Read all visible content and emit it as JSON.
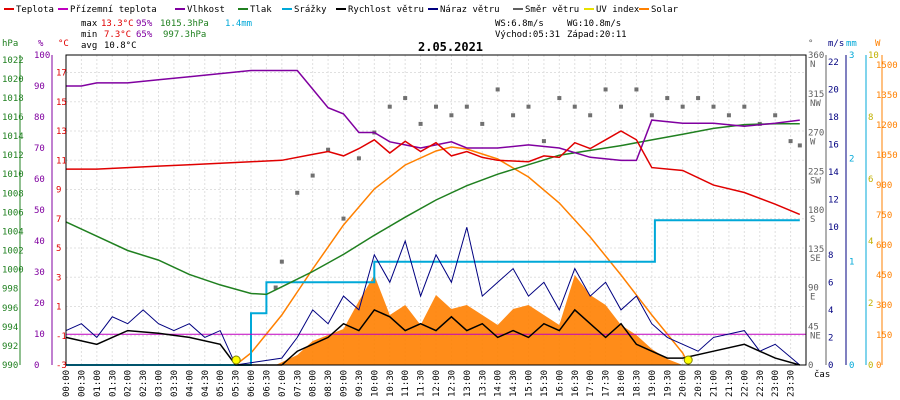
{
  "chart_data": {
    "type": "line",
    "title": "2.05.2021",
    "legend": [
      {
        "label": "Teplota",
        "color": "#e00000"
      },
      {
        "label": "Přízemní teplota",
        "color": "#c000c0"
      },
      {
        "label": "Vlhkost",
        "color": "#8000a0"
      },
      {
        "label": "Tlak",
        "color": "#208020"
      },
      {
        "label": "Srážky",
        "color": "#00a8d8"
      },
      {
        "label": "Rychlost větru",
        "color": "#000000"
      },
      {
        "label": "Náraz větru",
        "color": "#000080"
      },
      {
        "label": "Směr větru",
        "color": "#606060"
      },
      {
        "label": "UV index",
        "color": "#e8e000"
      },
      {
        "label": "Solar",
        "color": "#ff8000"
      }
    ],
    "stats": {
      "max_label": "max",
      "max_temp": "13.3°C",
      "max_hum": "95%",
      "max_press": "1015.3hPa",
      "rain_total": "1.4mm",
      "min_label": "min",
      "min_temp": "7.3°C",
      "min_hum": "65%",
      "min_press": "997.3hPa",
      "avg_label": "avg",
      "avg_temp": "10.8°C",
      "ws": "WS:6.8m/s",
      "wg": "WG:10.8m/s",
      "sunrise": "Východ:05:31",
      "sunset": "Západ:20:11"
    },
    "axis_units": {
      "hpa": "hPa",
      "pct": "%",
      "temp": "°C",
      "dir": "°",
      "ms": "m/s",
      "mm": "mm",
      "w": "W",
      "x": "čas"
    },
    "x_ticks": [
      "00:00",
      "00:30",
      "01:00",
      "01:30",
      "02:00",
      "02:30",
      "03:00",
      "03:30",
      "04:00",
      "04:30",
      "05:00",
      "05:30",
      "06:00",
      "06:30",
      "07:00",
      "07:30",
      "08:00",
      "08:30",
      "09:00",
      "09:30",
      "10:00",
      "10:30",
      "11:00",
      "11:30",
      "12:00",
      "12:30",
      "13:00",
      "13:30",
      "14:00",
      "14:30",
      "15:00",
      "15:30",
      "16:00",
      "16:30",
      "17:00",
      "17:30",
      "18:00",
      "18:30",
      "19:00",
      "19:30",
      "20:00",
      "20:30",
      "21:00",
      "21:30",
      "22:00",
      "22:30",
      "23:00",
      "23:30"
    ],
    "y_ticks_hpa": [
      "1022",
      "1020",
      "1018",
      "1016",
      "1014",
      "1012",
      "1010",
      "1008",
      "1006",
      "1004",
      "1002",
      "1000",
      "998",
      "996",
      "994",
      "992",
      "990"
    ],
    "y_ticks_pct": [
      "100",
      "90",
      "80",
      "70",
      "60",
      "50",
      "40",
      "30",
      "20",
      "10",
      "0"
    ],
    "y_ticks_temp": [
      "17",
      "15",
      "13",
      "11",
      "9",
      "7",
      "5",
      "3",
      "1",
      "-1",
      "-3"
    ],
    "y_ticks_dir": [
      "360",
      "315",
      "270",
      "225",
      "180",
      "135",
      "90",
      "45",
      "0"
    ],
    "y_ticks_dir_labels": [
      "N",
      "NW",
      "W",
      "SW",
      "S",
      "SE",
      "E",
      "NE",
      ""
    ],
    "y_ticks_ms": [
      "22",
      "20",
      "18",
      "16",
      "14",
      "12",
      "10",
      "8",
      "6",
      "4",
      "2",
      "0"
    ],
    "y_ticks_mm": [
      "3",
      "2",
      "1",
      "0"
    ],
    "y_ticks_uv": [
      "10",
      "8",
      "6",
      "4",
      "2",
      "0"
    ],
    "y_ticks_w": [
      "1500",
      "1350",
      "1200",
      "1050",
      "900",
      "750",
      "600",
      "450",
      "300",
      "150",
      "0"
    ],
    "series": {
      "temperature_c": [
        [
          0,
          10.4
        ],
        [
          1,
          10.4
        ],
        [
          2,
          10.5
        ],
        [
          3,
          10.6
        ],
        [
          4,
          10.7
        ],
        [
          5,
          10.8
        ],
        [
          6,
          10.9
        ],
        [
          7,
          11.0
        ],
        [
          8,
          11.4
        ],
        [
          8.5,
          11.6
        ],
        [
          9,
          11.3
        ],
        [
          9.5,
          11.8
        ],
        [
          10,
          12.4
        ],
        [
          10.5,
          11.5
        ],
        [
          11,
          12.3
        ],
        [
          11.5,
          11.6
        ],
        [
          12,
          12.2
        ],
        [
          12.5,
          11.3
        ],
        [
          13,
          11.6
        ],
        [
          13.5,
          11.2
        ],
        [
          14,
          11.0
        ],
        [
          15,
          10.9
        ],
        [
          15.5,
          11.3
        ],
        [
          16,
          11.2
        ],
        [
          16.5,
          12.2
        ],
        [
          17,
          11.8
        ],
        [
          17.5,
          12.4
        ],
        [
          18,
          13.0
        ],
        [
          18.5,
          12.4
        ],
        [
          19,
          10.5
        ],
        [
          20,
          10.3
        ],
        [
          21,
          9.3
        ],
        [
          22,
          8.8
        ],
        [
          23,
          8.0
        ],
        [
          23.8,
          7.3
        ]
      ],
      "humidity_pct": [
        [
          0,
          90
        ],
        [
          0.5,
          90
        ],
        [
          1,
          91
        ],
        [
          2,
          91
        ],
        [
          3,
          92
        ],
        [
          4,
          93
        ],
        [
          5,
          94
        ],
        [
          6,
          95
        ],
        [
          7,
          95
        ],
        [
          7.5,
          95
        ],
        [
          8,
          89
        ],
        [
          8.5,
          83
        ],
        [
          9,
          81
        ],
        [
          9.5,
          75
        ],
        [
          10,
          75
        ],
        [
          10.5,
          72
        ],
        [
          11,
          71
        ],
        [
          11.5,
          70
        ],
        [
          12,
          71
        ],
        [
          12.5,
          72
        ],
        [
          13,
          70
        ],
        [
          14,
          70
        ],
        [
          15,
          71
        ],
        [
          16,
          70
        ],
        [
          17,
          67
        ],
        [
          18,
          66
        ],
        [
          18.5,
          66
        ],
        [
          19,
          79
        ],
        [
          20,
          78
        ],
        [
          21,
          78
        ],
        [
          22,
          77
        ],
        [
          23,
          78
        ],
        [
          23.8,
          79
        ]
      ],
      "pressure_hpa": [
        [
          0,
          1005
        ],
        [
          1,
          1003.5
        ],
        [
          2,
          1002
        ],
        [
          3,
          1001
        ],
        [
          4,
          999.5
        ],
        [
          5,
          998.4
        ],
        [
          6,
          997.5
        ],
        [
          6.5,
          997.4
        ],
        [
          7,
          998.2
        ],
        [
          8,
          999.8
        ],
        [
          9,
          1001.6
        ],
        [
          10,
          1003.6
        ],
        [
          11,
          1005.5
        ],
        [
          12,
          1007.3
        ],
        [
          13,
          1008.8
        ],
        [
          14,
          1010
        ],
        [
          15,
          1011
        ],
        [
          16,
          1012
        ],
        [
          17,
          1012.5
        ],
        [
          18,
          1013
        ],
        [
          19,
          1013.6
        ],
        [
          20,
          1014.2
        ],
        [
          21,
          1014.8
        ],
        [
          22,
          1015.2
        ],
        [
          23,
          1015.3
        ],
        [
          23.8,
          1015.3
        ]
      ],
      "rain_mm": [
        [
          0,
          0
        ],
        [
          5.8,
          0
        ],
        [
          6.0,
          0.5
        ],
        [
          6.5,
          0.8
        ],
        [
          8.5,
          0.8
        ],
        [
          10,
          1.0
        ],
        [
          19,
          1.0
        ],
        [
          19.1,
          1.4
        ],
        [
          23.8,
          1.4
        ]
      ],
      "wind_speed_ms": [
        [
          0,
          2.0
        ],
        [
          1,
          1.5
        ],
        [
          2,
          2.5
        ],
        [
          3,
          2.3
        ],
        [
          4,
          2.0
        ],
        [
          5,
          1.5
        ],
        [
          5.5,
          0
        ],
        [
          7,
          0
        ],
        [
          7.5,
          1
        ],
        [
          8,
          1.5
        ],
        [
          8.5,
          2
        ],
        [
          9,
          3
        ],
        [
          9.5,
          2.5
        ],
        [
          10,
          4
        ],
        [
          10.5,
          3.5
        ],
        [
          11,
          2.5
        ],
        [
          11.5,
          3
        ],
        [
          12,
          2.5
        ],
        [
          12.5,
          3.5
        ],
        [
          13,
          2.5
        ],
        [
          13.5,
          3
        ],
        [
          14,
          2
        ],
        [
          14.5,
          2.5
        ],
        [
          15,
          2
        ],
        [
          15.5,
          3
        ],
        [
          16,
          2.5
        ],
        [
          16.5,
          4
        ],
        [
          17,
          3
        ],
        [
          17.5,
          2
        ],
        [
          18,
          3
        ],
        [
          18.5,
          1.5
        ],
        [
          19,
          1
        ],
        [
          19.5,
          0.5
        ],
        [
          20,
          0.5
        ],
        [
          21,
          1
        ],
        [
          22,
          1.5
        ],
        [
          23,
          0.5
        ],
        [
          23.8,
          0
        ]
      ],
      "wind_gust_ms": [
        [
          0,
          2.5
        ],
        [
          0.5,
          3
        ],
        [
          1,
          2
        ],
        [
          1.5,
          3.5
        ],
        [
          2,
          3
        ],
        [
          2.5,
          4
        ],
        [
          3,
          3
        ],
        [
          3.5,
          2.5
        ],
        [
          4,
          3
        ],
        [
          4.5,
          2
        ],
        [
          5,
          2.5
        ],
        [
          5.5,
          0
        ],
        [
          7,
          0.5
        ],
        [
          7.5,
          2
        ],
        [
          8,
          4
        ],
        [
          8.5,
          3
        ],
        [
          9,
          5
        ],
        [
          9.5,
          4
        ],
        [
          10,
          8
        ],
        [
          10.5,
          6
        ],
        [
          11,
          9
        ],
        [
          11.5,
          5
        ],
        [
          12,
          8
        ],
        [
          12.5,
          6
        ],
        [
          13,
          10
        ],
        [
          13.5,
          5
        ],
        [
          14,
          6
        ],
        [
          14.5,
          7
        ],
        [
          15,
          5
        ],
        [
          15.5,
          6
        ],
        [
          16,
          4
        ],
        [
          16.5,
          7
        ],
        [
          17,
          5
        ],
        [
          17.5,
          6
        ],
        [
          18,
          4
        ],
        [
          18.5,
          5
        ],
        [
          19,
          3
        ],
        [
          19.5,
          2
        ],
        [
          20,
          1.5
        ],
        [
          20.5,
          1
        ],
        [
          21,
          2
        ],
        [
          22,
          2.5
        ],
        [
          22.5,
          1
        ],
        [
          23,
          1.5
        ],
        [
          23.8,
          0
        ]
      ],
      "wind_dir_deg": [
        [
          6.8,
          90
        ],
        [
          7,
          120
        ],
        [
          7.5,
          200
        ],
        [
          8,
          220
        ],
        [
          8.5,
          250
        ],
        [
          9,
          170
        ],
        [
          9.5,
          240
        ],
        [
          10,
          270
        ],
        [
          10.5,
          300
        ],
        [
          11,
          310
        ],
        [
          11.5,
          280
        ],
        [
          12,
          300
        ],
        [
          12.5,
          290
        ],
        [
          13,
          300
        ],
        [
          13.5,
          280
        ],
        [
          14,
          320
        ],
        [
          14.5,
          290
        ],
        [
          15,
          300
        ],
        [
          15.5,
          260
        ],
        [
          16,
          310
        ],
        [
          16.5,
          300
        ],
        [
          17,
          290
        ],
        [
          17.5,
          320
        ],
        [
          18,
          300
        ],
        [
          18.5,
          320
        ],
        [
          19,
          290
        ],
        [
          19.5,
          310
        ],
        [
          20,
          300
        ],
        [
          20.5,
          310
        ],
        [
          21,
          300
        ],
        [
          21.5,
          290
        ],
        [
          22,
          300
        ],
        [
          22.5,
          280
        ],
        [
          23,
          290
        ],
        [
          23.5,
          260
        ],
        [
          23.8,
          255
        ]
      ],
      "solar_wm2": [
        [
          5.5,
          0
        ],
        [
          6,
          60
        ],
        [
          7,
          250
        ],
        [
          8,
          480
        ],
        [
          9,
          700
        ],
        [
          10,
          880
        ],
        [
          11,
          1000
        ],
        [
          12,
          1070
        ],
        [
          12.5,
          1090
        ],
        [
          13,
          1080
        ],
        [
          14,
          1030
        ],
        [
          15,
          940
        ],
        [
          16,
          810
        ],
        [
          17,
          640
        ],
        [
          18,
          450
        ],
        [
          19,
          250
        ],
        [
          20,
          60
        ],
        [
          20.2,
          0
        ]
      ],
      "solar_measured_wm2": [
        [
          6.8,
          0
        ],
        [
          7.5,
          50
        ],
        [
          8,
          120
        ],
        [
          8.5,
          150
        ],
        [
          9,
          180
        ],
        [
          9.5,
          320
        ],
        [
          10,
          450
        ],
        [
          10.5,
          250
        ],
        [
          11,
          300
        ],
        [
          11.5,
          200
        ],
        [
          12,
          350
        ],
        [
          12.5,
          280
        ],
        [
          13,
          300
        ],
        [
          13.5,
          250
        ],
        [
          14,
          200
        ],
        [
          14.5,
          280
        ],
        [
          15,
          300
        ],
        [
          15.5,
          250
        ],
        [
          16,
          200
        ],
        [
          16.5,
          450
        ],
        [
          17,
          350
        ],
        [
          17.5,
          300
        ],
        [
          18,
          200
        ],
        [
          18.5,
          150
        ],
        [
          19,
          80
        ],
        [
          19.5,
          30
        ],
        [
          20,
          0
        ]
      ]
    }
  }
}
